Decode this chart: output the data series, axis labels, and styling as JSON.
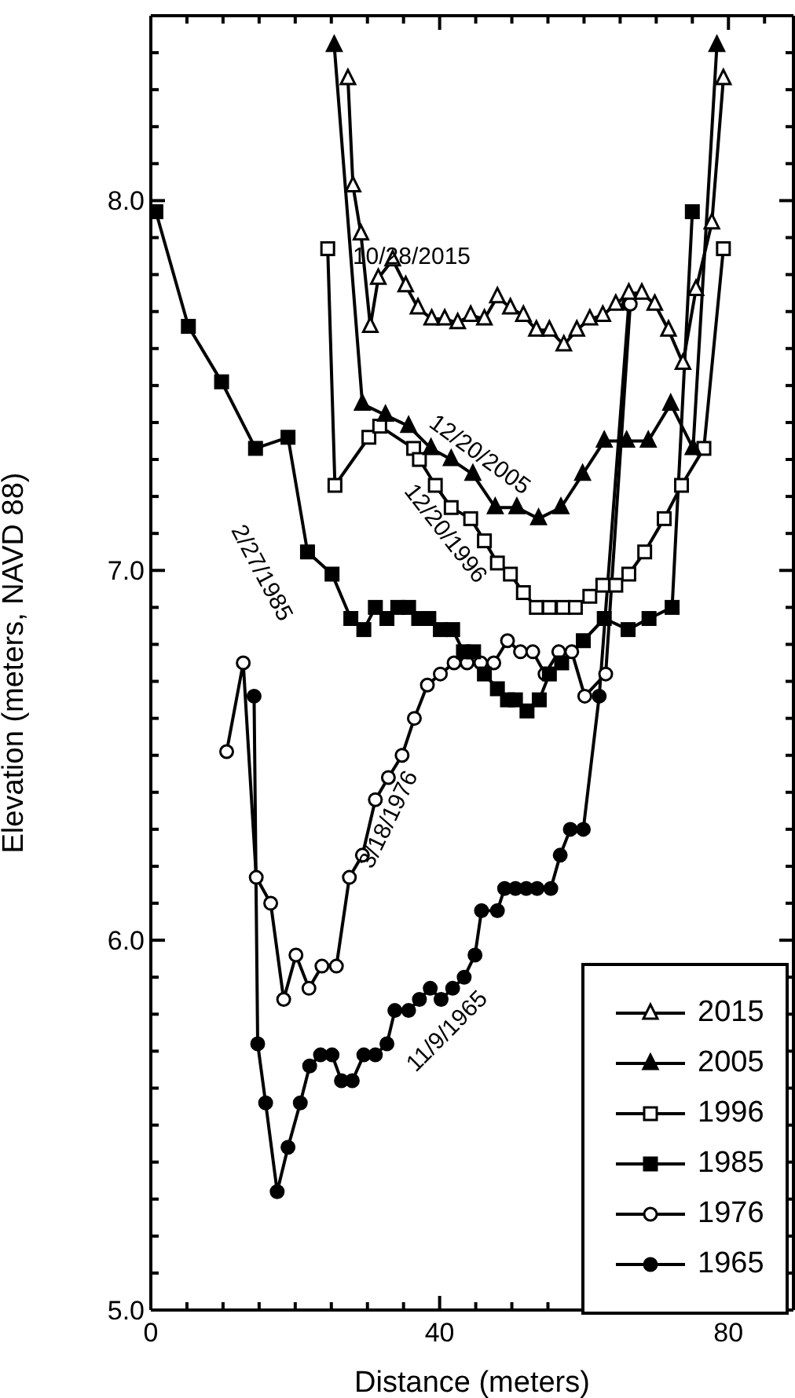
{
  "chart_data": {
    "type": "line",
    "xlabel": "Distance (meters)",
    "ylabel": "Elevation (meters, NAVD 88)",
    "xlim": [
      0,
      89
    ],
    "ylim": [
      5.0,
      8.5
    ],
    "xticks": [
      0,
      {
        "value": 5,
        "label": null
      },
      {
        "value": 10,
        "label": null
      },
      {
        "value": 15,
        "label": null
      },
      {
        "value": 20,
        "label": null
      },
      {
        "value": 25,
        "label": null
      },
      {
        "value": 30,
        "label": null
      },
      {
        "value": 35,
        "label": null
      },
      40,
      {
        "value": 45,
        "label": null
      },
      {
        "value": 50,
        "label": null
      },
      {
        "value": 55,
        "label": null
      },
      {
        "value": 60,
        "label": null
      },
      {
        "value": 65,
        "label": null
      },
      {
        "value": 70,
        "label": null
      },
      {
        "value": 75,
        "label": null
      },
      80,
      {
        "value": 85,
        "label": null
      }
    ],
    "yticks": [
      {
        "value": 5.0,
        "label": "5.0"
      },
      {
        "value": 5.1,
        "label": null
      },
      {
        "value": 5.2,
        "label": null
      },
      {
        "value": 5.3,
        "label": null
      },
      {
        "value": 5.4,
        "label": null
      },
      {
        "value": 5.5,
        "label": null
      },
      {
        "value": 5.6,
        "label": null
      },
      {
        "value": 5.7,
        "label": null
      },
      {
        "value": 5.8,
        "label": null
      },
      {
        "value": 5.9,
        "label": null
      },
      {
        "value": 6.0,
        "label": "6.0"
      },
      {
        "value": 6.1,
        "label": null
      },
      {
        "value": 6.2,
        "label": null
      },
      {
        "value": 6.3,
        "label": null
      },
      {
        "value": 6.4,
        "label": null
      },
      {
        "value": 6.5,
        "label": null
      },
      {
        "value": 6.6,
        "label": null
      },
      {
        "value": 6.7,
        "label": null
      },
      {
        "value": 6.8,
        "label": null
      },
      {
        "value": 6.9,
        "label": null
      },
      {
        "value": 7.0,
        "label": "7.0"
      },
      {
        "value": 7.1,
        "label": null
      },
      {
        "value": 7.2,
        "label": null
      },
      {
        "value": 7.3,
        "label": null
      },
      {
        "value": 7.4,
        "label": null
      },
      {
        "value": 7.5,
        "label": null
      },
      {
        "value": 7.6,
        "label": null
      },
      {
        "value": 7.7,
        "label": null
      },
      {
        "value": 7.8,
        "label": null
      },
      {
        "value": 7.9,
        "label": null
      },
      {
        "value": 8.0,
        "label": "8.0"
      },
      {
        "value": 8.1,
        "label": null
      },
      {
        "value": 8.2,
        "label": null
      },
      {
        "value": 8.3,
        "label": null
      },
      {
        "value": 8.4,
        "label": null
      }
    ],
    "legend": "bottom right",
    "line_style": "solid",
    "annotations": [
      "10/28/2015",
      "12/20/2005",
      "12/20/1996",
      "2/27/1985",
      "3/18/1976",
      "11/9/1965"
    ],
    "series": [
      {
        "name": "2015",
        "color": "#000000",
        "marker": "triangle",
        "x": [
          27.3,
          28.0,
          29.1,
          30.4,
          31.5,
          33.5,
          35.3,
          37.0,
          38.9,
          40.7,
          42.5,
          44.3,
          46.2,
          48.0,
          49.8,
          51.6,
          53.4,
          55.2,
          57.2,
          59.0,
          60.8,
          62.6,
          64.4,
          66.2,
          68.0,
          69.8,
          71.7,
          73.7,
          75.5,
          77.7,
          79.3
        ],
        "values": [
          8.33,
          8.04,
          7.91,
          7.66,
          7.79,
          7.84,
          7.77,
          7.71,
          7.68,
          7.68,
          7.67,
          7.69,
          7.68,
          7.74,
          7.71,
          7.69,
          7.65,
          7.65,
          7.61,
          7.65,
          7.68,
          7.69,
          7.72,
          7.75,
          7.75,
          7.72,
          7.65,
          7.56,
          7.76,
          7.94,
          8.33
        ]
      },
      {
        "name": "2005",
        "color": "#000000",
        "marker": "triangle",
        "x": [
          25.4,
          29.3,
          32.5,
          35.7,
          38.8,
          41.6,
          44.6,
          47.7,
          50.7,
          53.7,
          56.8,
          59.8,
          62.8,
          65.9,
          68.9,
          72.0,
          75.1,
          78.4
        ],
        "values": [
          8.42,
          7.45,
          7.42,
          7.39,
          7.33,
          7.3,
          7.26,
          7.17,
          7.17,
          7.14,
          7.17,
          7.26,
          7.35,
          7.35,
          7.35,
          7.45,
          7.33,
          8.42
        ]
      },
      {
        "name": "1996",
        "color": "#000000",
        "marker": "square",
        "x": [
          24.5,
          25.5,
          30.2,
          31.7,
          36.4,
          37.2,
          39.4,
          41.6,
          44.3,
          46.2,
          48.0,
          49.8,
          51.6,
          53.4,
          55.2,
          57.1,
          58.8,
          60.8,
          62.6,
          64.4,
          66.2,
          68.4,
          71.1,
          73.5,
          76.6,
          79.3
        ],
        "values": [
          7.87,
          7.23,
          7.36,
          7.39,
          7.33,
          7.3,
          7.23,
          7.17,
          7.14,
          7.08,
          7.02,
          6.99,
          6.94,
          6.9,
          6.9,
          6.9,
          6.9,
          6.93,
          6.96,
          6.96,
          6.99,
          7.05,
          7.14,
          7.23,
          7.33,
          7.87
        ]
      },
      {
        "name": "1985",
        "color": "#000000",
        "marker": "square",
        "x": [
          0.7,
          5.2,
          9.8,
          14.5,
          19.0,
          21.7,
          25.1,
          27.7,
          29.5,
          31.1,
          32.7,
          34.2,
          35.7,
          37.1,
          38.5,
          40.1,
          41.8,
          43.3,
          44.7,
          46.2,
          48.0,
          49.4,
          50.5,
          52.1,
          53.8,
          55.2,
          56.9,
          59.9,
          62.8,
          66.1,
          69.0,
          72.2,
          75.0
        ],
        "values": [
          7.97,
          7.66,
          7.51,
          7.33,
          7.36,
          7.05,
          6.99,
          6.87,
          6.84,
          6.9,
          6.87,
          6.9,
          6.9,
          6.87,
          6.87,
          6.84,
          6.84,
          6.78,
          6.78,
          6.72,
          6.68,
          6.65,
          6.65,
          6.62,
          6.65,
          6.72,
          6.75,
          6.81,
          6.87,
          6.84,
          6.87,
          6.9,
          7.97
        ]
      },
      {
        "name": "1976",
        "color": "#000000",
        "marker": "circle",
        "x": [
          10.5,
          12.8,
          14.6,
          16.6,
          18.4,
          20.1,
          21.9,
          23.7,
          25.7,
          27.5,
          29.3,
          31.1,
          32.9,
          34.8,
          36.5,
          38.3,
          40.1,
          42.0,
          43.8,
          45.7,
          47.5,
          49.4,
          51.2,
          52.9,
          54.6,
          56.5,
          58.3,
          60.1,
          63.0,
          66.4
        ],
        "values": [
          6.51,
          6.75,
          6.17,
          6.1,
          5.84,
          5.96,
          5.87,
          5.93,
          5.93,
          6.17,
          6.23,
          6.38,
          6.44,
          6.5,
          6.6,
          6.69,
          6.72,
          6.75,
          6.75,
          6.75,
          6.75,
          6.81,
          6.78,
          6.78,
          6.72,
          6.78,
          6.78,
          6.66,
          6.72,
          7.72
        ]
      },
      {
        "name": "1965",
        "color": "#000000",
        "marker": "circle",
        "x": [
          14.3,
          14.8,
          15.9,
          17.5,
          19.0,
          20.7,
          22.0,
          23.5,
          25.1,
          26.4,
          27.9,
          29.5,
          31.1,
          32.7,
          33.8,
          35.7,
          37.2,
          38.7,
          40.2,
          41.8,
          43.4,
          44.9,
          45.8,
          48.0,
          49.0,
          50.5,
          52.0,
          53.5,
          55.4,
          56.7,
          58.1,
          59.9,
          62.1,
          66.2
        ],
        "values": [
          6.66,
          5.72,
          5.56,
          5.32,
          5.44,
          5.56,
          5.66,
          5.69,
          5.69,
          5.62,
          5.62,
          5.69,
          5.69,
          5.72,
          5.81,
          5.81,
          5.84,
          5.87,
          5.84,
          5.87,
          5.9,
          5.96,
          6.08,
          6.08,
          6.14,
          6.14,
          6.14,
          6.14,
          6.14,
          6.23,
          6.3,
          6.3,
          6.66,
          7.72
        ]
      }
    ]
  }
}
